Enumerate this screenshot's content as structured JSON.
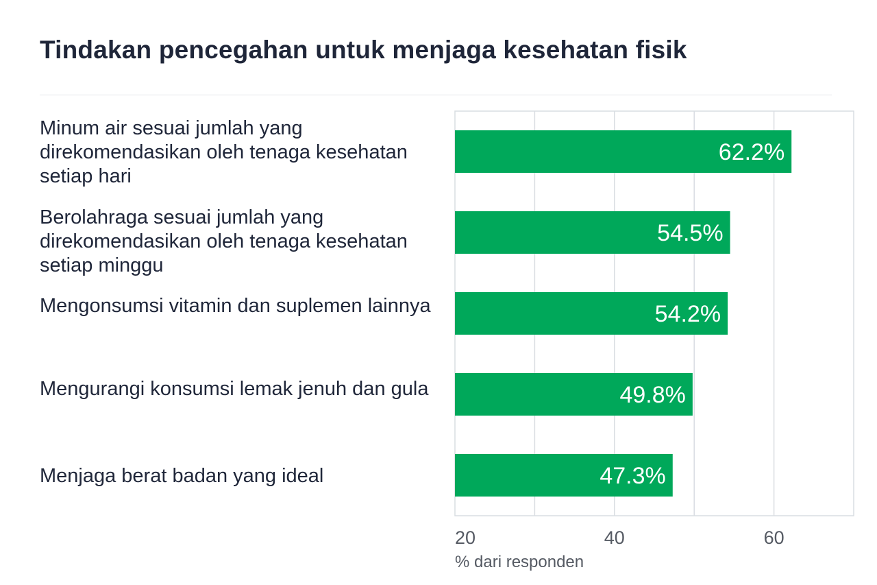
{
  "chart_data": {
    "type": "bar",
    "orientation": "horizontal",
    "title": "Tindakan pencegahan untuk menjaga kesehatan fisik",
    "categories": [
      "Minum air sesuai jumlah yang direkomendasikan oleh tenaga kesehatan setiap hari",
      "Berolahraga sesuai jumlah yang direkomendasikan oleh tenaga kesehatan setiap minggu",
      "Mengonsumsi vitamin dan suplemen lainnya",
      "Mengurangi konsumsi lemak jenuh dan gula",
      "Menjaga berat badan yang ideal"
    ],
    "values": [
      62.2,
      54.5,
      54.2,
      49.8,
      47.3
    ],
    "value_labels": [
      "62.2%",
      "54.5%",
      "54.2%",
      "49.8%",
      "47.3%"
    ],
    "xlabel": "% dari responden",
    "xlim": [
      20,
      70
    ],
    "xticks": [
      20,
      40,
      60
    ],
    "grid": true,
    "bar_color": "#00a85a"
  }
}
